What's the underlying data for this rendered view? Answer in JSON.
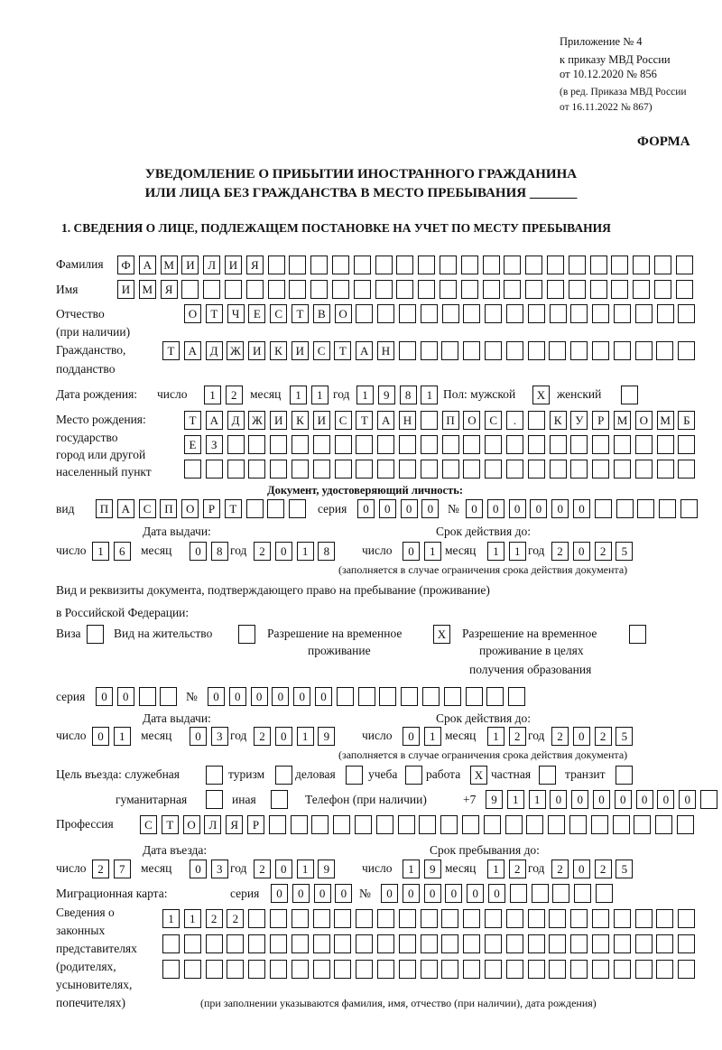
{
  "header": {
    "line1": "Приложение № 4",
    "line2": "к приказу МВД России",
    "line3": "от 10.12.2020 № 856",
    "line4": "(в ред. Приказа МВД России",
    "line5": "от 16.11.2022 № 867)",
    "form_label": "ФОРМА",
    "title1": "УВЕДОМЛЕНИЕ О ПРИБЫТИИ ИНОСТРАННОГО ГРАЖДАНИНА",
    "title2": "ИЛИ ЛИЦА БЕЗ ГРАЖДАНСТВА В МЕСТО ПРЕБЫВАНИЯ _______",
    "section1": "1. СВЕДЕНИЯ О ЛИЦЕ, ПОДЛЕЖАЩЕМ ПОСТАНОВКЕ НА УЧЕТ ПО МЕСТУ ПРЕБЫВАНИЯ"
  },
  "labels": {
    "surname": "Фамилия",
    "name": "Имя",
    "patronymic": "Отчество",
    "patronymic_note": "(при наличии)",
    "citizenship": "Гражданство,",
    "citizenship2": "подданство",
    "birth_date": "Дата рождения:",
    "day": "число",
    "month": "месяц",
    "year": "год",
    "sex": "Пол: мужской",
    "female": "женский",
    "birthplace1": "Место рождения:",
    "birthplace2": "государство",
    "birthplace3": "город или другой",
    "birthplace4": "населенный пункт",
    "id_doc": "Документ, удостоверяющий личность:",
    "kind": "вид",
    "series": "серия",
    "number": "№",
    "issue_date": "Дата выдачи:",
    "valid_until": "Срок действия до:",
    "valid_note": "(заполняется в случае ограничения срока действия документа)",
    "right_doc1": "Вид и реквизиты документа, подтверждающего право на пребывание (проживание)",
    "right_doc2": "в Российской Федерации:",
    "visa": "Виза",
    "residence": "Вид на жительство",
    "temp1": "Разрешение на временное",
    "temp2": "проживание",
    "edu1": "Разрешение на временное",
    "edu2": "проживание в целях",
    "edu3": "получения образования",
    "purpose": "Цель въезда: служебная",
    "tourism": "туризм",
    "business": "деловая",
    "study": "учеба",
    "work": "работа",
    "private": "частная",
    "transit": "транзит",
    "humanitarian": "гуманитарная",
    "other": "иная",
    "phone": "Телефон (при наличии)",
    "phone_prefix": "+7",
    "profession": "Профессия",
    "entry_date": "Дата въезда:",
    "stay_until": "Срок пребывания до:",
    "migration_card": "Миграционная карта:",
    "reps1": "Сведения о",
    "reps2": "законных",
    "reps3": "представителях",
    "reps4": "(родителях,",
    "reps5": "усыновителях,",
    "reps6": "попечителях)",
    "reps_note": "(при заполнении указываются фамилия, имя, отчество (при наличии), дата рождения)"
  },
  "check_mark": "X",
  "fields": {
    "surname": "ФАМИЛИЯ",
    "name": "ИМЯ",
    "patronymic": "ОТЧЕСТВО",
    "citizenship": "ТАДЖИКИСТАН",
    "birth_day": "12",
    "birth_month": "11",
    "birth_year": "1981",
    "sex_male": true,
    "sex_female": false,
    "birthplace_1": "ТАДЖИКИСТАН ПОС. КУРМОМБ",
    "birthplace_2": "ЕЗ",
    "birthplace_3": "",
    "id_kind": "ПАСПОРТ",
    "id_series": "0000",
    "id_number": "000000",
    "id_issue_day": "16",
    "id_issue_month": "08",
    "id_issue_year": "2018",
    "id_valid_day": "01",
    "id_valid_month": "11",
    "id_valid_year": "2025",
    "right_visa": false,
    "right_residence": false,
    "right_temp": true,
    "right_edu": false,
    "right_series": "00",
    "right_number": "000000",
    "right_issue_day": "01",
    "right_issue_month": "03",
    "right_issue_year": "2019",
    "right_valid_day": "01",
    "right_valid_month": "12",
    "right_valid_year": "2025",
    "purpose_service": false,
    "purpose_tourism": false,
    "purpose_business": false,
    "purpose_study": false,
    "purpose_work": true,
    "purpose_private": false,
    "purpose_transit": false,
    "purpose_humanitarian": false,
    "purpose_other": false,
    "phone": "9110000000",
    "profession": "СТОЛЯР",
    "entry_day": "27",
    "entry_month": "03",
    "entry_year": "2019",
    "stay_day": "19",
    "stay_month": "12",
    "stay_year": "2025",
    "mc_series": "0000",
    "mc_number": "000000",
    "reps_1": "1122",
    "reps_2": "",
    "reps_3": ""
  }
}
